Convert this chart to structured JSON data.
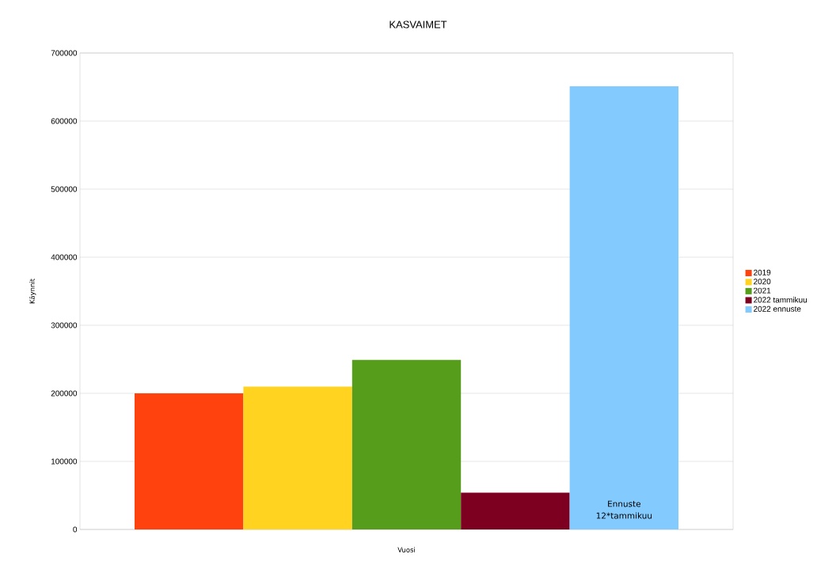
{
  "chart_data": {
    "type": "bar",
    "title": "KASVAIMET",
    "xlabel": "Vuosi",
    "ylabel": "Käynnit",
    "categories": [
      null
    ],
    "series": [
      {
        "name": "2019",
        "color": "#ff420e",
        "values": [
          200000
        ]
      },
      {
        "name": "2020",
        "color": "#ffd320",
        "values": [
          210000
        ]
      },
      {
        "name": "2021",
        "color": "#579d1c",
        "values": [
          249000
        ]
      },
      {
        "name": "2022 tammikuu",
        "color": "#7e0021",
        "values": [
          54000
        ]
      },
      {
        "name": "2022 ennuste",
        "color": "#83caff",
        "values": [
          651000
        ]
      }
    ],
    "ylim": [
      0,
      700000
    ],
    "yticks": [
      0,
      100000,
      200000,
      300000,
      400000,
      500000,
      600000,
      700000
    ],
    "grid": "y",
    "legend": "right",
    "annotations": [
      "Ennuste 12*tammikuu"
    ]
  }
}
